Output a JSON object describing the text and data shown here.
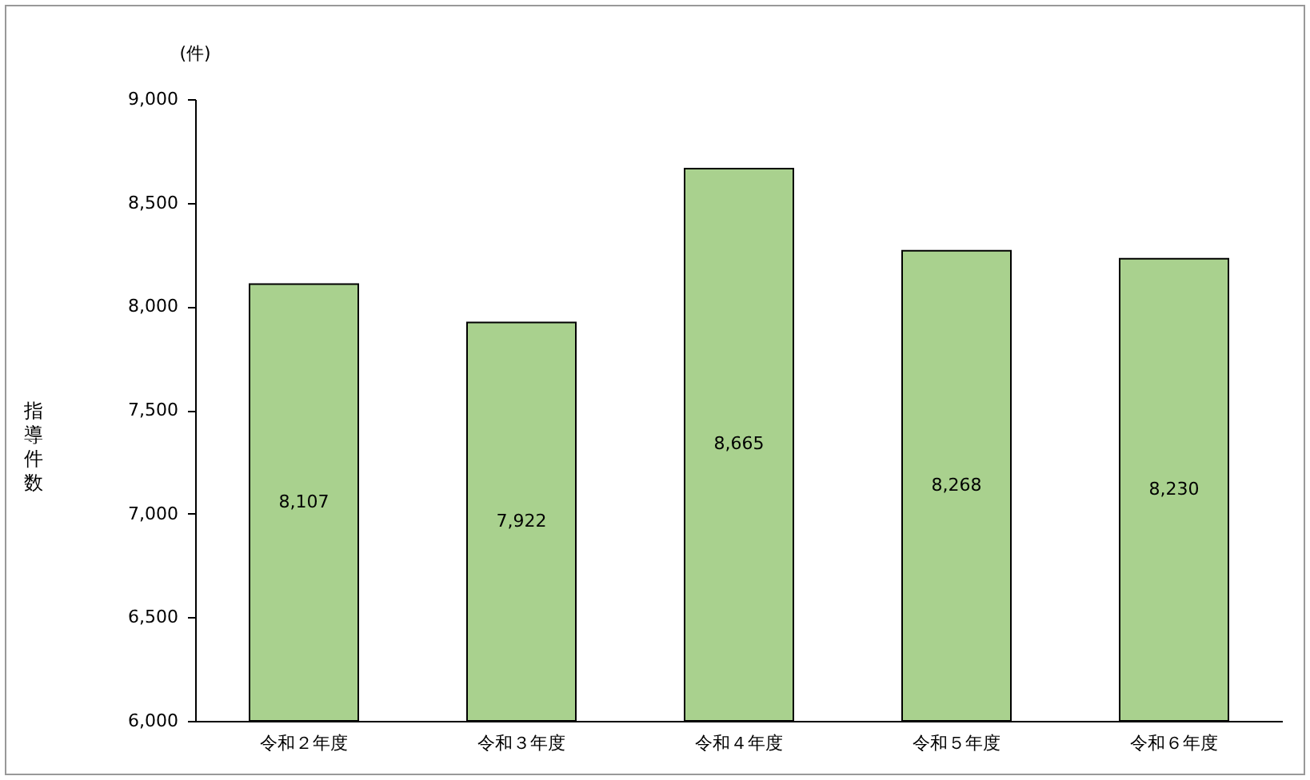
{
  "chart_data": {
    "type": "bar",
    "ylabel": "指導件数",
    "annotations": [
      "(件)"
    ],
    "categories": [
      "令和２年度",
      "令和３年度",
      "令和４年度",
      "令和５年度",
      "令和６年度"
    ],
    "values": [
      8107,
      7922,
      8665,
      8268,
      8230
    ],
    "value_labels": [
      "8,107",
      "7,922",
      "8,665",
      "8,268",
      "8,230"
    ],
    "color": "#a9d18e",
    "ylim": [
      6000,
      9000
    ],
    "yticks": [
      {
        "value": 6000,
        "label": "6,000"
      },
      {
        "value": 6500,
        "label": "6,500"
      },
      {
        "value": 7000,
        "label": "7,000"
      },
      {
        "value": 7500,
        "label": "7,500"
      },
      {
        "value": 8000,
        "label": "8,000"
      },
      {
        "value": 8500,
        "label": "8,500"
      },
      {
        "value": 9000,
        "label": "9,000"
      }
    ],
    "grid": false
  }
}
